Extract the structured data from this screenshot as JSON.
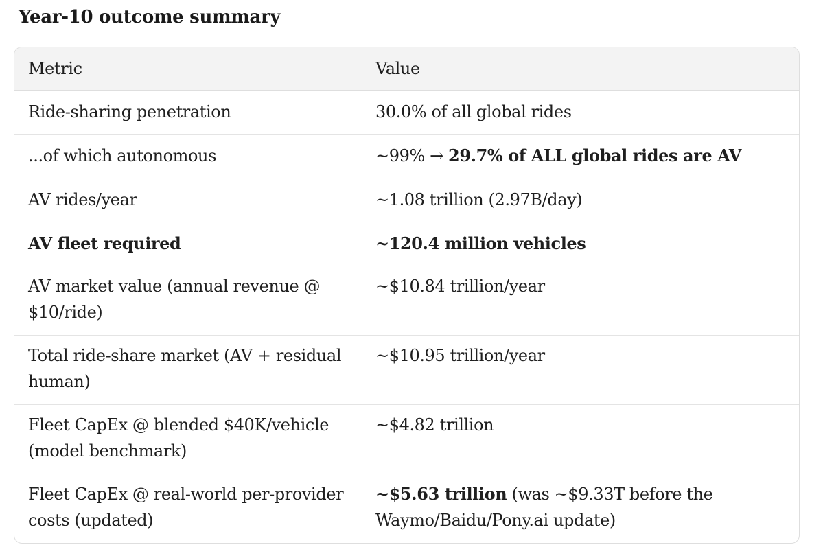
{
  "heading": "Year-10 outcome summary",
  "table": {
    "headers": [
      "Metric",
      "Value"
    ],
    "rows": [
      {
        "metric": "Ride-sharing penetration",
        "value_plain": "30.0% of all global rides",
        "value_bold": ""
      },
      {
        "metric": "...of which autonomous",
        "value_plain": "~99% → ",
        "value_bold": "29.7% of ALL global rides are AV"
      },
      {
        "metric": "AV rides/year",
        "value_plain": "~1.08 trillion (2.97B/day)",
        "value_bold": ""
      },
      {
        "metric": "AV fleet required",
        "metric_bold": true,
        "value_plain": "",
        "value_bold": "~120.4 million vehicles"
      },
      {
        "metric": "AV market value (annual revenue @ $10/ride)",
        "value_plain": "~$10.84 trillion/year",
        "value_bold": ""
      },
      {
        "metric": "Total ride-share market (AV + residual human)",
        "value_plain": "~$10.95 trillion/year",
        "value_bold": ""
      },
      {
        "metric": "Fleet CapEx @ blended $40K/vehicle (model benchmark)",
        "value_plain": "~$4.82 trillion",
        "value_bold": ""
      },
      {
        "metric": "Fleet CapEx @ real-world per-provider costs (updated)",
        "value_bold": "~$5.63 trillion",
        "value_plain_after": " (was ~$9.33T before the Waymo/Baidu/Pony.ai update)"
      }
    ]
  }
}
